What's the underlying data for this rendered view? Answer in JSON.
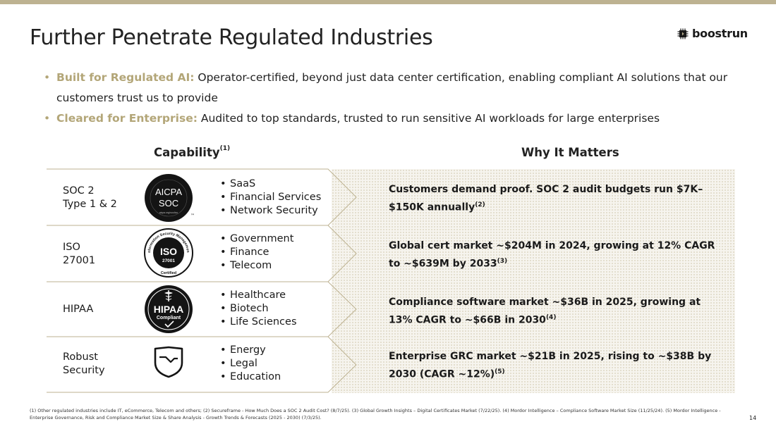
{
  "header": {
    "title": "Further Penetrate Regulated Industries",
    "logo_text": "boostrun",
    "accent_color": "#bdb291"
  },
  "bullets": [
    {
      "lead": "Built for Regulated AI:",
      "text": " Operator-certified, beyond just data center certification, enabling compliant AI solutions that our customers trust us to provide"
    },
    {
      "lead": "Cleared for Enterprise:",
      "text": " Audited to top standards, trusted to run sensitive AI workloads for large enterprises"
    }
  ],
  "columns": {
    "capability": "Capability",
    "capability_note": "(1)",
    "why": "Why It Matters"
  },
  "rows": [
    {
      "label_lines": [
        "SOC 2",
        "Type 1 & 2"
      ],
      "badge": {
        "icon": "aicpa-soc-badge-icon",
        "line1": "AICPA",
        "line2": "SOC",
        "sub": "aicpa.org/soc4so",
        "tm": "™"
      },
      "industries": [
        "SaaS",
        "Financial Services",
        "Network Security"
      ],
      "why": "Customers demand proof. SOC 2 audit budgets run $7K–$150K annually",
      "why_note": "(2)"
    },
    {
      "label_lines": [
        "ISO",
        "27001"
      ],
      "badge": {
        "icon": "iso-27001-badge-icon",
        "line1": "ISO",
        "line2": "27001",
        "ring": "Information Security Management",
        "sub": "Certified"
      },
      "industries": [
        "Government",
        "Finance",
        "Telecom"
      ],
      "why": "Global cert market ~$204M in 2024, growing at 12% CAGR to ~$639M by 2033",
      "why_note": "(3)"
    },
    {
      "label_lines": [
        "HIPAA"
      ],
      "badge": {
        "icon": "hipaa-compliant-badge-icon",
        "line1": "HIPAA",
        "line2": "Compliant"
      },
      "industries": [
        "Healthcare",
        "Biotech",
        "Life Sciences"
      ],
      "why": "Compliance software market ~$36B in 2025, growing at 13% CAGR to ~$66B in 2030",
      "why_note": "(4)"
    },
    {
      "label_lines": [
        "Robust",
        "Security"
      ],
      "badge": {
        "icon": "shield-icon"
      },
      "industries": [
        "Energy",
        "Legal",
        "Education"
      ],
      "why": "Enterprise GRC market ~$21B in 2025, rising to ~$38B by 2030 (CAGR ~12%)",
      "why_note": "(5)"
    }
  ],
  "footnote": "(1) Other regulated industries include IT, eCommerce, Telecom and others; (2) Secureframe - How Much Does a SOC 2 Audit Cost? (8/7/25). (3) Global Growth Insights – Digital Certificates Market (7/22/25). (4) Mordor Intelligence – Compliance Software Market Size (11/25/24). (5) Mordor Intelligence - Enterprise Governance, Risk and Compliance Market Size & Share Analysis - Growth Trends & Forecasts (2025 - 2030) (7/3/25).",
  "page_number": "14"
}
